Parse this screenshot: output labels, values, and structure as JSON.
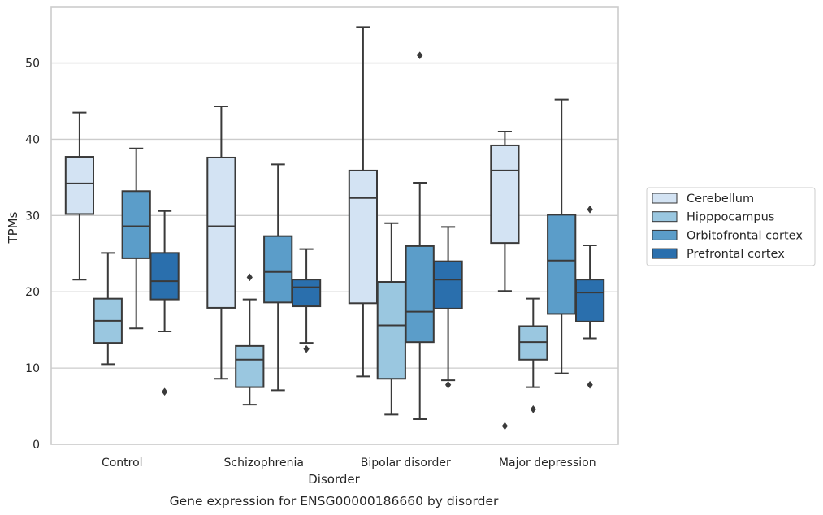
{
  "chart_data": {
    "type": "box",
    "caption": "Gene expression for ENSG00000186660 by disorder",
    "xlabel": "Disorder",
    "ylabel": "TPMs",
    "ylim": [
      0,
      57.3
    ],
    "yticks": [
      0,
      10,
      20,
      30,
      40,
      50
    ],
    "grid": "horizontal",
    "legend_position": "right",
    "categories": [
      "Control",
      "Schizophrenia",
      "Bipolar disorder",
      "Major depression"
    ],
    "series": [
      {
        "name": "Cerebellum",
        "color": "#d3e3f3",
        "boxes": [
          {
            "whislo": 21.6,
            "q1": 30.2,
            "med": 34.2,
            "q3": 37.7,
            "whishi": 43.5,
            "fliers": []
          },
          {
            "whislo": 8.6,
            "q1": 17.9,
            "med": 28.6,
            "q3": 37.6,
            "whishi": 44.3,
            "fliers": []
          },
          {
            "whislo": 8.9,
            "q1": 18.5,
            "med": 32.3,
            "q3": 35.9,
            "whishi": 54.7,
            "fliers": []
          },
          {
            "whislo": 20.1,
            "q1": 26.4,
            "med": 35.9,
            "q3": 39.2,
            "whishi": 41.0,
            "fliers": [
              2.4
            ]
          }
        ]
      },
      {
        "name": "Hipppocampus",
        "color": "#9ac7e0",
        "boxes": [
          {
            "whislo": 10.5,
            "q1": 13.3,
            "med": 16.2,
            "q3": 19.1,
            "whishi": 25.1,
            "fliers": []
          },
          {
            "whislo": 5.2,
            "q1": 7.5,
            "med": 11.1,
            "q3": 12.9,
            "whishi": 19.0,
            "fliers": [
              21.9
            ]
          },
          {
            "whislo": 3.9,
            "q1": 8.6,
            "med": 15.6,
            "q3": 21.3,
            "whishi": 29.0,
            "fliers": []
          },
          {
            "whislo": 7.5,
            "q1": 11.1,
            "med": 13.4,
            "q3": 15.5,
            "whishi": 19.1,
            "fliers": [
              4.6
            ]
          }
        ]
      },
      {
        "name": "Orbitofrontal cortex",
        "color": "#5b9dc9",
        "boxes": [
          {
            "whislo": 15.2,
            "q1": 24.4,
            "med": 28.6,
            "q3": 33.2,
            "whishi": 38.8,
            "fliers": []
          },
          {
            "whislo": 7.1,
            "q1": 18.6,
            "med": 22.6,
            "q3": 27.3,
            "whishi": 36.7,
            "fliers": []
          },
          {
            "whislo": 3.3,
            "q1": 13.4,
            "med": 17.4,
            "q3": 26.0,
            "whishi": 34.3,
            "fliers": [
              51.0
            ]
          },
          {
            "whislo": 9.3,
            "q1": 17.1,
            "med": 24.1,
            "q3": 30.1,
            "whishi": 45.2,
            "fliers": []
          }
        ]
      },
      {
        "name": "Prefrontal cortex",
        "color": "#2a6fad",
        "boxes": [
          {
            "whislo": 14.8,
            "q1": 19.0,
            "med": 21.4,
            "q3": 25.1,
            "whishi": 30.6,
            "fliers": [
              6.9
            ]
          },
          {
            "whislo": 13.3,
            "q1": 18.1,
            "med": 20.6,
            "q3": 21.6,
            "whishi": 25.6,
            "fliers": [
              12.5
            ]
          },
          {
            "whislo": 8.4,
            "q1": 17.8,
            "med": 21.6,
            "q3": 24.0,
            "whishi": 28.5,
            "fliers": [
              7.8
            ]
          },
          {
            "whislo": 13.9,
            "q1": 16.1,
            "med": 19.9,
            "q3": 21.6,
            "whishi": 26.1,
            "fliers": [
              7.8,
              30.8
            ]
          }
        ]
      }
    ]
  }
}
